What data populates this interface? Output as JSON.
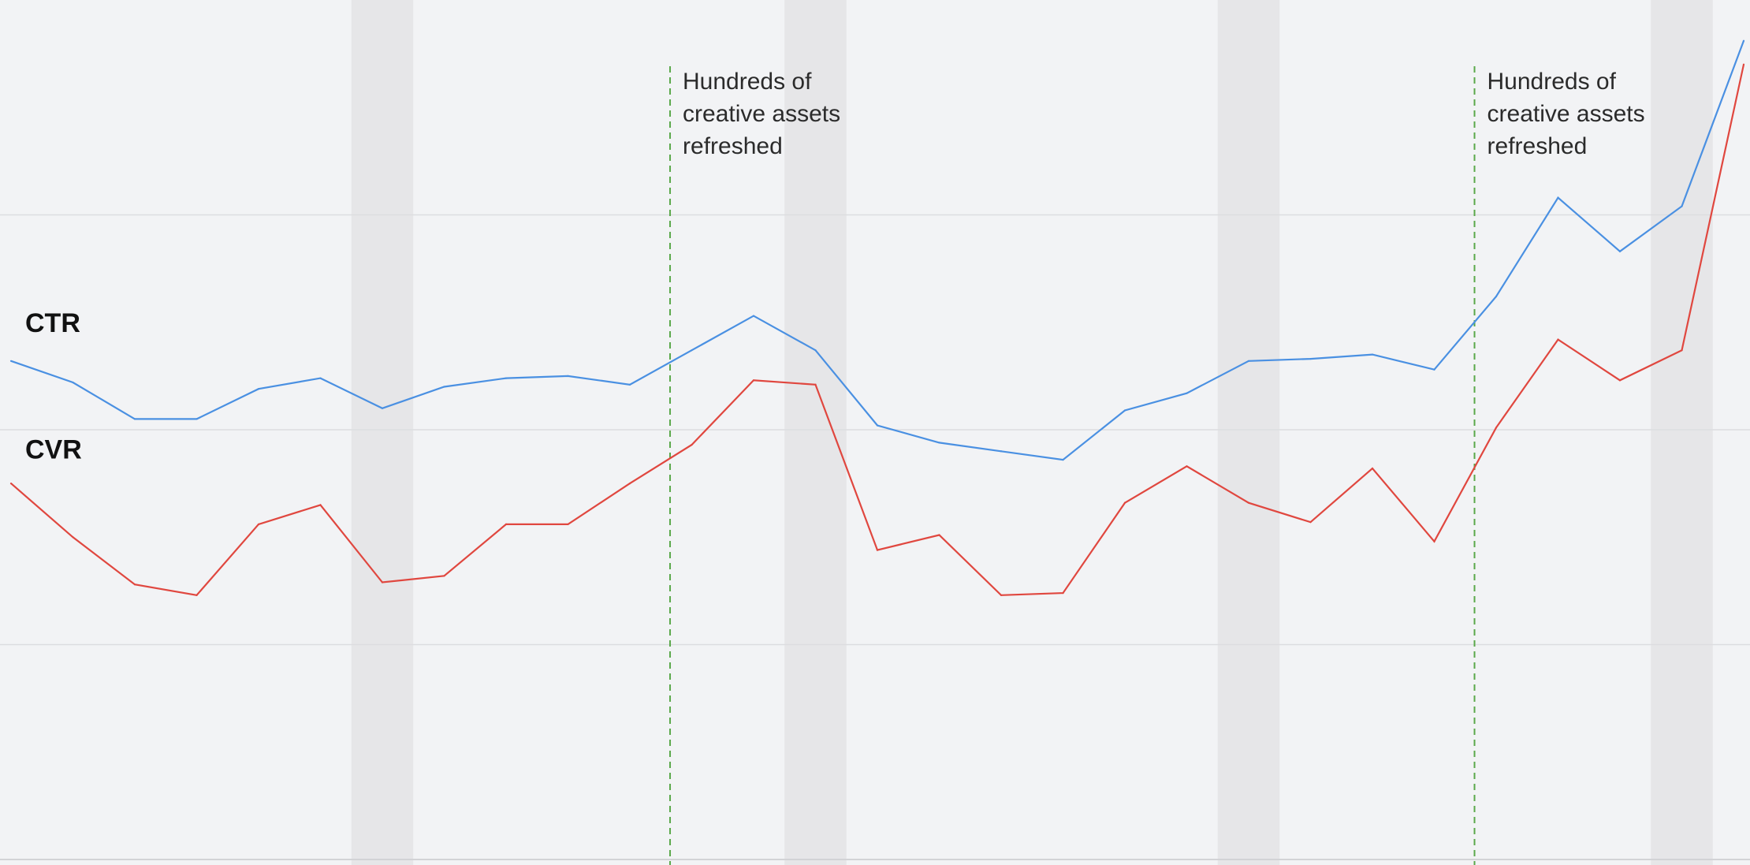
{
  "chart_data": {
    "type": "line",
    "title": "",
    "xlabel": "",
    "ylabel": "",
    "x": [
      1,
      2,
      3,
      4,
      5,
      6,
      7,
      8,
      9,
      10,
      11,
      12,
      13,
      14,
      15,
      16,
      17,
      18,
      19,
      20,
      21,
      22,
      23,
      24,
      25,
      26,
      27,
      28,
      29
    ],
    "ylim": [
      0,
      4
    ],
    "grid": true,
    "series": [
      {
        "name": "CTR",
        "color": "#4a90e2",
        "values": [
          2.32,
          2.22,
          2.05,
          2.05,
          2.19,
          2.24,
          2.1,
          2.2,
          2.24,
          2.25,
          2.21,
          2.37,
          2.53,
          2.37,
          2.02,
          1.94,
          1.9,
          1.86,
          2.09,
          2.17,
          2.32,
          2.33,
          2.35,
          2.28,
          2.62,
          3.08,
          2.83,
          3.04,
          3.81
        ]
      },
      {
        "name": "CVR",
        "color": "#e0473f",
        "values": [
          1.75,
          1.5,
          1.28,
          1.23,
          1.56,
          1.65,
          1.29,
          1.32,
          1.56,
          1.56,
          1.75,
          1.93,
          2.23,
          2.21,
          1.44,
          1.51,
          1.23,
          1.24,
          1.66,
          1.83,
          1.66,
          1.57,
          1.82,
          1.48,
          2.01,
          2.42,
          2.23,
          2.37,
          3.7
        ]
      }
    ],
    "shaded_bands": [
      {
        "from": 6.5,
        "to": 7.5
      },
      {
        "from": 13.5,
        "to": 14.5
      },
      {
        "from": 20.5,
        "to": 21.5
      },
      {
        "from": 27.5,
        "to": 28.5
      }
    ],
    "annotations": [
      {
        "x": 11.65,
        "lines": [
          "Hundreds of",
          "creative assets",
          "refreshed"
        ],
        "color": "#5aa84a"
      },
      {
        "x": 24.65,
        "lines": [
          "Hundreds of",
          "creative assets",
          "refreshed"
        ],
        "color": "#5aa84a"
      }
    ],
    "series_labels": [
      {
        "text": "CTR",
        "anchor_y": 2.5
      },
      {
        "text": "CVR",
        "anchor_y": 1.91
      }
    ],
    "gridlines_y": [
      1,
      2,
      3
    ]
  }
}
